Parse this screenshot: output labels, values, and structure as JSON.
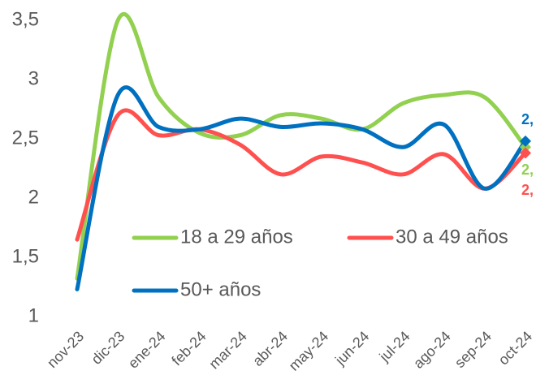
{
  "chart_data": {
    "type": "line",
    "categories": [
      "nov-23",
      "dic-23",
      "ene-24",
      "feb-24",
      "mar-24",
      "abr-24",
      "may-24",
      "jun-24",
      "jul-24",
      "ago-24",
      "sep-24",
      "oct-24"
    ],
    "series": [
      {
        "name": "18 a 29 años",
        "color": "#92d050",
        "values": [
          1.32,
          3.5,
          2.85,
          2.55,
          2.53,
          2.7,
          2.67,
          2.58,
          2.8,
          2.87,
          2.85,
          2.43
        ],
        "value_labels": [
          null,
          null,
          null,
          null,
          null,
          null,
          null,
          null,
          null,
          null,
          null,
          "2,"
        ]
      },
      {
        "name": "30 a 49 años",
        "color": "#ff5050",
        "values": [
          1.65,
          2.7,
          2.53,
          2.58,
          2.45,
          2.2,
          2.35,
          2.3,
          2.2,
          2.37,
          2.08,
          2.38
        ],
        "value_labels": [
          null,
          null,
          null,
          null,
          null,
          null,
          null,
          null,
          null,
          null,
          null,
          "2,"
        ]
      },
      {
        "name": "50+ años",
        "color": "#0070c0",
        "values": [
          1.23,
          2.87,
          2.6,
          2.58,
          2.67,
          2.6,
          2.63,
          2.58,
          2.43,
          2.62,
          2.08,
          2.48
        ],
        "value_labels": [
          null,
          null,
          null,
          null,
          null,
          null,
          null,
          null,
          null,
          null,
          null,
          "2,"
        ]
      }
    ],
    "ylim": [
      1,
      3.5
    ],
    "yticks": [
      1,
      {
        "value": 1.5,
        "label": "1,5"
      },
      2,
      {
        "value": 2.5,
        "label": "2,5"
      },
      3,
      {
        "value": 3.5,
        "label": "3,5"
      }
    ],
    "grid": false,
    "smooth": true
  }
}
